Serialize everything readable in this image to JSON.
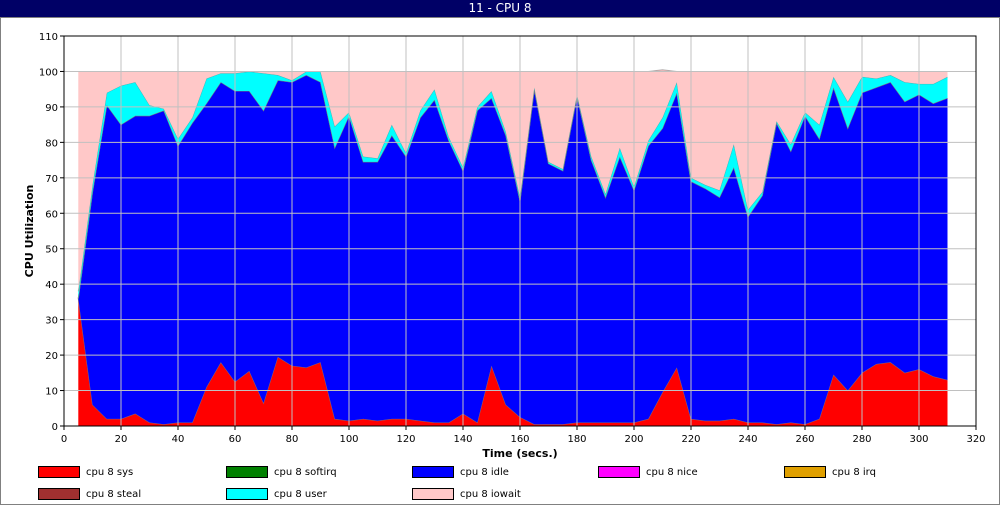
{
  "window": {
    "title": "11 - CPU 8"
  },
  "chart_data": {
    "type": "area",
    "stacked": true,
    "xlabel": "Time (secs.)",
    "ylabel": "CPU Utilization",
    "xlim": [
      0,
      320
    ],
    "ylim": [
      0,
      110
    ],
    "x_ticks": [
      0,
      20,
      40,
      60,
      80,
      100,
      120,
      140,
      160,
      180,
      200,
      220,
      240,
      260,
      280,
      300,
      320
    ],
    "y_ticks": [
      0,
      10,
      20,
      30,
      40,
      50,
      60,
      70,
      80,
      90,
      100,
      110
    ],
    "grid": true,
    "legend_position": "bottom",
    "x": [
      5,
      10,
      15,
      20,
      25,
      30,
      35,
      40,
      45,
      50,
      55,
      60,
      65,
      70,
      75,
      80,
      85,
      90,
      95,
      100,
      105,
      110,
      115,
      120,
      125,
      130,
      135,
      140,
      145,
      150,
      155,
      160,
      165,
      170,
      175,
      180,
      185,
      190,
      195,
      200,
      205,
      210,
      215,
      220,
      225,
      230,
      235,
      240,
      245,
      250,
      255,
      260,
      265,
      270,
      275,
      280,
      285,
      290,
      295,
      300,
      305,
      310
    ],
    "series": [
      {
        "name": "cpu 8 sys",
        "color": "#ff0000",
        "values": [
          36,
          6,
          2,
          2,
          3.5,
          1,
          0.5,
          1,
          1,
          11,
          18,
          12.5,
          15.5,
          6.5,
          19.5,
          17,
          16.5,
          18,
          2,
          1.5,
          2,
          1.5,
          2,
          2,
          1.5,
          1,
          1,
          3.5,
          1,
          17,
          6,
          2.5,
          0.5,
          0.5,
          0.5,
          1,
          1,
          1,
          1,
          1,
          2,
          9.5,
          16.5,
          2,
          1.5,
          1.5,
          2,
          1,
          1,
          0.5,
          1,
          0.5,
          2,
          14.5,
          10,
          15,
          17.5,
          18,
          15,
          16,
          14,
          13
        ]
      },
      {
        "name": "cpu 8 softirq",
        "color": "#008000",
        "values": [
          0,
          0,
          0,
          0,
          0,
          0,
          0,
          0,
          0,
          0,
          0,
          0,
          0,
          0,
          0,
          0,
          0,
          0,
          0,
          0,
          0,
          0,
          0,
          0,
          0,
          0,
          0,
          0,
          0,
          0,
          0,
          0,
          0,
          0,
          0,
          0,
          0,
          0,
          0,
          0,
          0,
          0,
          0,
          0,
          0,
          0,
          0,
          0,
          0,
          0,
          0,
          0,
          0,
          0,
          0,
          0,
          0,
          0,
          0,
          0,
          0,
          0
        ]
      },
      {
        "name": "cpu 8 idle",
        "color": "#0000ff",
        "values": [
          0,
          60,
          88.5,
          83,
          84,
          86.5,
          88.5,
          78,
          84.5,
          80,
          79,
          82,
          79,
          82.5,
          78,
          80,
          82.5,
          79,
          76.5,
          86,
          72.5,
          73,
          80,
          74,
          85.5,
          91,
          79.5,
          68.5,
          88,
          75.5,
          76,
          61,
          94.5,
          73.5,
          71.5,
          92,
          74,
          63.5,
          75,
          65.5,
          77,
          74.5,
          77.5,
          67,
          65.5,
          63,
          71,
          58,
          64,
          85,
          76.5,
          87,
          79,
          81,
          74,
          79,
          78,
          79,
          76.5,
          77.5,
          77,
          79.5
        ]
      },
      {
        "name": "cpu 8 nice",
        "color": "#ff00ff",
        "values": [
          0,
          0,
          0,
          0,
          0,
          0,
          0,
          0,
          0,
          0,
          0,
          0,
          0,
          0,
          0,
          0,
          0,
          0,
          0,
          0,
          0,
          0,
          0,
          0,
          0,
          0,
          0,
          0,
          0,
          0,
          0,
          0,
          0,
          0,
          0,
          0,
          0,
          0,
          0,
          0,
          0,
          0,
          0,
          0,
          0,
          0,
          0,
          0,
          0,
          0,
          0,
          0,
          0,
          0,
          0,
          0,
          0,
          0,
          0,
          0,
          0,
          0
        ]
      },
      {
        "name": "cpu 8 irq",
        "color": "#e0a000",
        "values": [
          0,
          0,
          0,
          0,
          0,
          0,
          0,
          0,
          0,
          0,
          0,
          0,
          0,
          0,
          0,
          0,
          0,
          0,
          0,
          0,
          0,
          0,
          0,
          0,
          0,
          0,
          0,
          0,
          0,
          0,
          0,
          0,
          0,
          0,
          0,
          0,
          0,
          0,
          0,
          0,
          0,
          0,
          0,
          0,
          0,
          0,
          0,
          0,
          0,
          0,
          0,
          0,
          0,
          0,
          0,
          0,
          0,
          0,
          0,
          0,
          0,
          0
        ]
      },
      {
        "name": "cpu 8 steal",
        "color": "#a03030",
        "values": [
          0,
          0,
          0,
          0,
          0,
          0,
          0,
          0,
          0,
          0,
          0,
          0,
          0,
          0,
          0,
          0,
          0,
          0,
          0,
          0,
          0,
          0,
          0,
          0,
          0,
          0,
          0,
          0,
          0,
          0,
          0,
          0,
          0,
          0,
          0,
          0,
          0,
          0,
          0,
          0,
          0,
          0,
          0,
          0,
          0,
          0,
          0,
          0,
          0,
          0,
          0,
          0,
          0,
          0,
          0,
          0,
          0,
          0,
          0,
          0,
          0,
          0
        ]
      },
      {
        "name": "cpu 8 user",
        "color": "#00ffff",
        "values": [
          2,
          2,
          3.5,
          11,
          9.5,
          3,
          0.5,
          2,
          1.5,
          7,
          2.5,
          5,
          5.5,
          10.5,
          1.5,
          0.5,
          1,
          3,
          6,
          1,
          1.5,
          1,
          3,
          1,
          2,
          3,
          1,
          1,
          1,
          2,
          1,
          1,
          0.5,
          0.5,
          0.5,
          0.5,
          1,
          1,
          2.5,
          1,
          1.5,
          3,
          3,
          1,
          1,
          2,
          6.5,
          2,
          1,
          0.5,
          2,
          1,
          4,
          3,
          7.5,
          4.5,
          2.5,
          2,
          5.5,
          3,
          5.5,
          6
        ]
      },
      {
        "name": "cpu 8 iowait",
        "color": "#ffc8c8",
        "values": [
          62,
          32,
          6,
          4,
          3,
          9.5,
          10.5,
          19,
          13,
          2,
          0.5,
          0.5,
          0,
          0.5,
          1,
          2.5,
          0,
          0,
          15.5,
          11.5,
          24,
          24.5,
          15,
          23,
          11,
          5,
          18.5,
          27,
          10,
          5.5,
          17,
          35.5,
          4.5,
          25.5,
          27.5,
          6.5,
          24,
          34.5,
          21.5,
          32.5,
          19.5,
          13.5,
          3,
          30,
          32,
          33.5,
          20.5,
          39,
          34,
          14,
          20.5,
          11.5,
          15,
          1.5,
          8.5,
          1.5,
          2,
          1,
          3,
          3.5,
          3.5,
          1.5
        ]
      }
    ]
  }
}
